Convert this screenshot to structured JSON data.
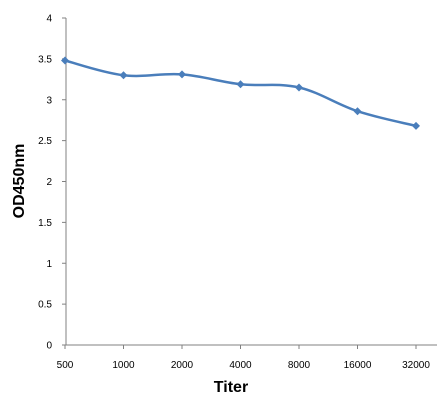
{
  "chart_data": {
    "type": "line",
    "xlabel": "Titer",
    "ylabel": "OD450nm",
    "categories": [
      "500",
      "1000",
      "2000",
      "4000",
      "8000",
      "16000",
      "32000"
    ],
    "series": [
      {
        "values": [
          3.48,
          3.3,
          3.31,
          3.19,
          3.15,
          2.86,
          2.68
        ]
      }
    ],
    "ylim": [
      0,
      4
    ],
    "yticks": [
      "0",
      "0.5",
      "1",
      "1.5",
      "2",
      "2.5",
      "3",
      "3.5",
      "4"
    ],
    "grid": false,
    "legend": "none",
    "colors": {
      "series": "#4a7ebb",
      "axis": "#808080"
    }
  }
}
